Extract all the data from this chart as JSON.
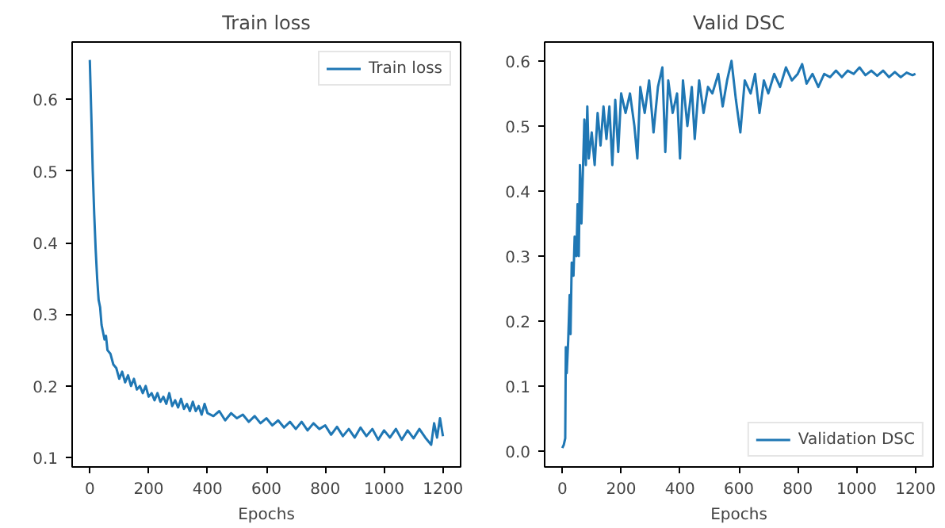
{
  "chart_data": [
    {
      "type": "line",
      "title": "Train loss",
      "xlabel": "Epochs",
      "legend": "top right",
      "grid": false,
      "xlim": [
        -60,
        1260
      ],
      "ylim": [
        0.087,
        0.68
      ],
      "xticks": [
        0,
        200,
        400,
        600,
        800,
        1000,
        1200
      ],
      "yticks": [
        0.1,
        0.2,
        0.3,
        0.4,
        0.5,
        0.6
      ],
      "series": [
        {
          "name": "Train loss",
          "color": "#1f77b4",
          "x": [
            0,
            5,
            10,
            15,
            20,
            25,
            30,
            35,
            40,
            45,
            50,
            55,
            60,
            70,
            80,
            90,
            100,
            110,
            120,
            130,
            140,
            150,
            160,
            170,
            180,
            190,
            200,
            210,
            220,
            230,
            240,
            250,
            260,
            270,
            280,
            290,
            300,
            310,
            320,
            330,
            340,
            350,
            360,
            370,
            380,
            390,
            400,
            420,
            440,
            460,
            480,
            500,
            520,
            540,
            560,
            580,
            600,
            620,
            640,
            660,
            680,
            700,
            720,
            740,
            760,
            780,
            800,
            820,
            840,
            860,
            880,
            900,
            920,
            940,
            960,
            980,
            1000,
            1020,
            1040,
            1060,
            1080,
            1100,
            1120,
            1140,
            1160,
            1170,
            1180,
            1190,
            1200
          ],
          "values": [
            0.655,
            0.58,
            0.5,
            0.44,
            0.39,
            0.35,
            0.32,
            0.31,
            0.285,
            0.275,
            0.265,
            0.27,
            0.25,
            0.245,
            0.23,
            0.225,
            0.21,
            0.22,
            0.205,
            0.215,
            0.2,
            0.21,
            0.195,
            0.2,
            0.19,
            0.2,
            0.185,
            0.19,
            0.18,
            0.19,
            0.178,
            0.185,
            0.175,
            0.19,
            0.172,
            0.18,
            0.17,
            0.182,
            0.168,
            0.175,
            0.165,
            0.178,
            0.165,
            0.172,
            0.16,
            0.175,
            0.162,
            0.158,
            0.165,
            0.152,
            0.162,
            0.155,
            0.16,
            0.15,
            0.158,
            0.148,
            0.155,
            0.145,
            0.152,
            0.142,
            0.15,
            0.14,
            0.15,
            0.138,
            0.148,
            0.14,
            0.145,
            0.132,
            0.143,
            0.13,
            0.14,
            0.128,
            0.142,
            0.13,
            0.14,
            0.125,
            0.138,
            0.128,
            0.14,
            0.125,
            0.138,
            0.127,
            0.14,
            0.128,
            0.118,
            0.148,
            0.128,
            0.155,
            0.13
          ]
        }
      ]
    },
    {
      "type": "line",
      "title": "Valid DSC",
      "xlabel": "Epochs",
      "legend": "bottom right",
      "grid": false,
      "xlim": [
        -60,
        1260
      ],
      "ylim": [
        -0.024,
        0.629
      ],
      "xticks": [
        0,
        200,
        400,
        600,
        800,
        1000,
        1200
      ],
      "yticks": [
        {
          "value": 0,
          "label": "0.0"
        },
        0.1,
        0.2,
        0.3,
        0.4,
        0.5,
        0.6
      ],
      "series": [
        {
          "name": "Validation DSC",
          "color": "#1f77b4",
          "x": [
            0,
            5,
            10,
            12,
            15,
            20,
            25,
            28,
            32,
            38,
            42,
            48,
            52,
            56,
            60,
            65,
            70,
            75,
            80,
            85,
            90,
            100,
            110,
            120,
            130,
            140,
            150,
            160,
            170,
            180,
            190,
            200,
            215,
            230,
            245,
            255,
            265,
            280,
            295,
            310,
            325,
            340,
            350,
            360,
            375,
            390,
            400,
            410,
            425,
            440,
            450,
            465,
            480,
            495,
            510,
            530,
            545,
            560,
            575,
            590,
            605,
            620,
            640,
            655,
            670,
            685,
            700,
            720,
            740,
            760,
            780,
            800,
            815,
            830,
            850,
            870,
            890,
            910,
            930,
            950,
            970,
            990,
            1010,
            1030,
            1050,
            1070,
            1090,
            1110,
            1130,
            1150,
            1170,
            1190,
            1200
          ],
          "values": [
            0.005,
            0.01,
            0.02,
            0.16,
            0.12,
            0.17,
            0.24,
            0.18,
            0.29,
            0.27,
            0.33,
            0.3,
            0.38,
            0.3,
            0.44,
            0.35,
            0.43,
            0.51,
            0.44,
            0.53,
            0.45,
            0.49,
            0.44,
            0.52,
            0.47,
            0.53,
            0.48,
            0.53,
            0.44,
            0.54,
            0.46,
            0.55,
            0.52,
            0.55,
            0.5,
            0.45,
            0.56,
            0.52,
            0.57,
            0.49,
            0.56,
            0.59,
            0.46,
            0.57,
            0.52,
            0.55,
            0.45,
            0.57,
            0.5,
            0.56,
            0.48,
            0.57,
            0.52,
            0.56,
            0.55,
            0.58,
            0.53,
            0.57,
            0.6,
            0.54,
            0.49,
            0.57,
            0.55,
            0.58,
            0.52,
            0.57,
            0.55,
            0.58,
            0.56,
            0.59,
            0.57,
            0.58,
            0.595,
            0.565,
            0.58,
            0.56,
            0.58,
            0.575,
            0.585,
            0.575,
            0.585,
            0.58,
            0.59,
            0.578,
            0.585,
            0.577,
            0.585,
            0.575,
            0.583,
            0.575,
            0.582,
            0.578,
            0.58
          ]
        }
      ]
    }
  ]
}
